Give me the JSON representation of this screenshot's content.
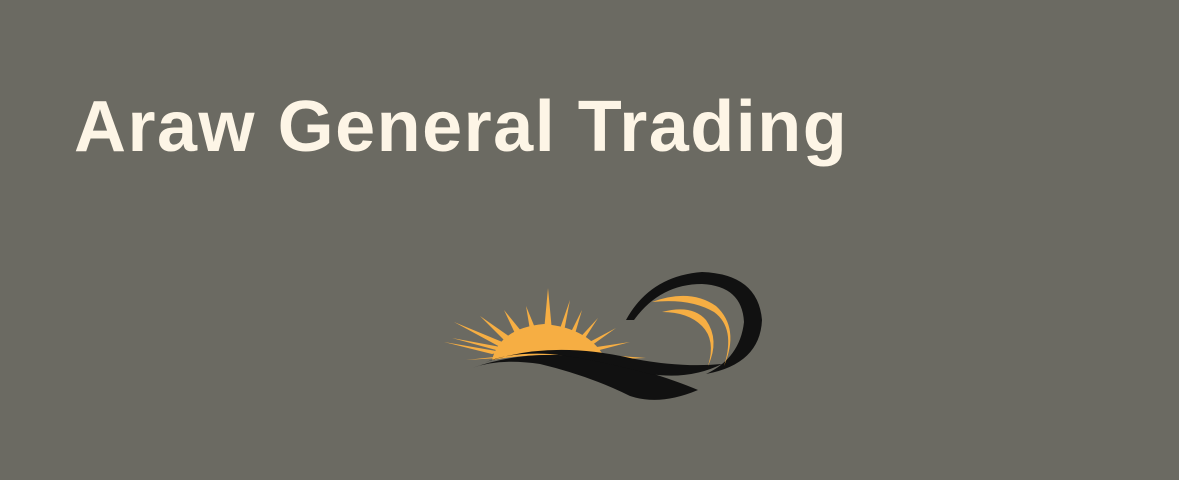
{
  "header": {
    "title": "Araw General Trading"
  },
  "logo": {
    "icon": "sun-wave-logo-icon"
  },
  "colors": {
    "background": "#6b6a62",
    "title_text": "#fdf5e6",
    "sun": "#f6ae43",
    "wave_dark": "#111111"
  }
}
